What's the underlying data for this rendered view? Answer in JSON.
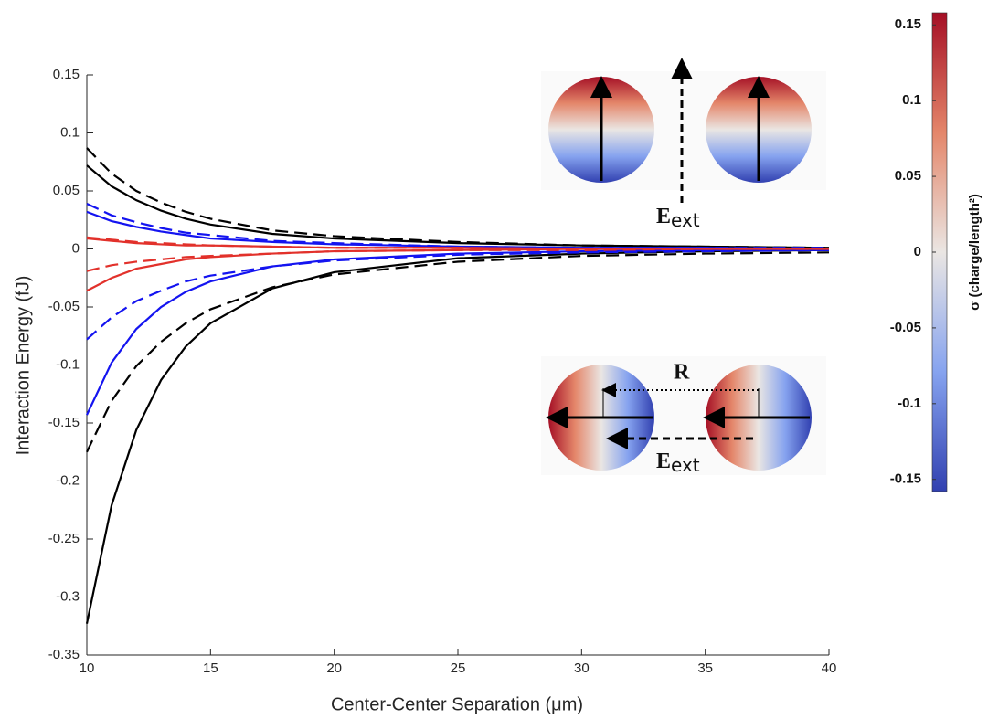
{
  "chart_data": {
    "type": "line",
    "xlabel": "Center-Center Separation (μm)",
    "ylabel": "Interaction Energy (fJ)",
    "x": [
      10,
      11,
      12,
      13,
      14,
      15,
      17.5,
      20,
      25,
      30,
      35,
      40
    ],
    "xlim": [
      10,
      40
    ],
    "xticks": [
      10,
      15,
      20,
      25,
      30,
      35,
      40
    ],
    "ylim": [
      -0.35,
      0.15
    ],
    "yticks": [
      -0.35,
      -0.3,
      -0.25,
      -0.2,
      -0.15,
      -0.1,
      -0.05,
      0,
      0.05,
      0.1,
      0.15
    ],
    "grid": false,
    "series": [
      {
        "color": "#000000",
        "dashed": false,
        "values": [
          0.072,
          0.054,
          0.042,
          0.033,
          0.026,
          0.021,
          0.013,
          0.009,
          0.005,
          0.003,
          0.002,
          0.001
        ]
      },
      {
        "color": "#000000",
        "dashed": true,
        "values": [
          0.087,
          0.065,
          0.05,
          0.04,
          0.032,
          0.026,
          0.016,
          0.011,
          0.006,
          0.003,
          0.002,
          0.001
        ]
      },
      {
        "color": "#1414f0",
        "dashed": false,
        "values": [
          0.032,
          0.024,
          0.019,
          0.015,
          0.012,
          0.009,
          0.006,
          0.004,
          0.002,
          0.001,
          0.001,
          0
        ]
      },
      {
        "color": "#1414f0",
        "dashed": true,
        "values": [
          0.039,
          0.029,
          0.023,
          0.018,
          0.014,
          0.012,
          0.007,
          0.005,
          0.002,
          0.001,
          0.001,
          0.001
        ]
      },
      {
        "color": "#e2312b",
        "dashed": false,
        "values": [
          0.009,
          0.007,
          0.005,
          0.004,
          0.003,
          0.003,
          0.002,
          0.001,
          0.001,
          0,
          0,
          0
        ]
      },
      {
        "color": "#e2312b",
        "dashed": true,
        "values": [
          0.01,
          0.008,
          0.006,
          0.005,
          0.004,
          0.003,
          0.002,
          0.001,
          0.001,
          0,
          0,
          0
        ]
      },
      {
        "color": "#000000",
        "dashed": false,
        "values": [
          -0.323,
          -0.221,
          -0.156,
          -0.113,
          -0.084,
          -0.064,
          -0.034,
          -0.02,
          -0.008,
          -0.004,
          -0.002,
          -0.001
        ]
      },
      {
        "color": "#000000",
        "dashed": true,
        "values": [
          -0.175,
          -0.131,
          -0.101,
          -0.08,
          -0.064,
          -0.052,
          -0.033,
          -0.022,
          -0.011,
          -0.006,
          -0.004,
          -0.003
        ]
      },
      {
        "color": "#1414f0",
        "dashed": false,
        "values": [
          -0.143,
          -0.098,
          -0.069,
          -0.05,
          -0.037,
          -0.028,
          -0.015,
          -0.009,
          -0.004,
          -0.002,
          -0.001,
          -0.001
        ]
      },
      {
        "color": "#1414f0",
        "dashed": true,
        "values": [
          -0.078,
          -0.059,
          -0.045,
          -0.036,
          -0.028,
          -0.023,
          -0.015,
          -0.01,
          -0.005,
          -0.003,
          -0.002,
          -0.001
        ]
      },
      {
        "color": "#e2312b",
        "dashed": false,
        "values": [
          -0.036,
          -0.025,
          -0.017,
          -0.013,
          -0.009,
          -0.007,
          -0.004,
          -0.002,
          -0.001,
          0,
          0,
          0
        ]
      },
      {
        "color": "#e2312b",
        "dashed": true,
        "values": [
          -0.019,
          -0.014,
          -0.011,
          -0.009,
          -0.007,
          -0.006,
          -0.004,
          -0.002,
          -0.001,
          -0.001,
          0,
          0
        ]
      }
    ],
    "colorbar": {
      "label": "σ (charge/length²)",
      "lim": [
        -0.158,
        0.158
      ],
      "ticks": [
        -0.15,
        -0.1,
        -0.05,
        0,
        0.05,
        0.1,
        0.15
      ]
    },
    "annotations": [
      {
        "main": "E",
        "sub": "ext"
      },
      {
        "main": "R"
      },
      {
        "main": "E",
        "sub": "ext"
      }
    ]
  }
}
